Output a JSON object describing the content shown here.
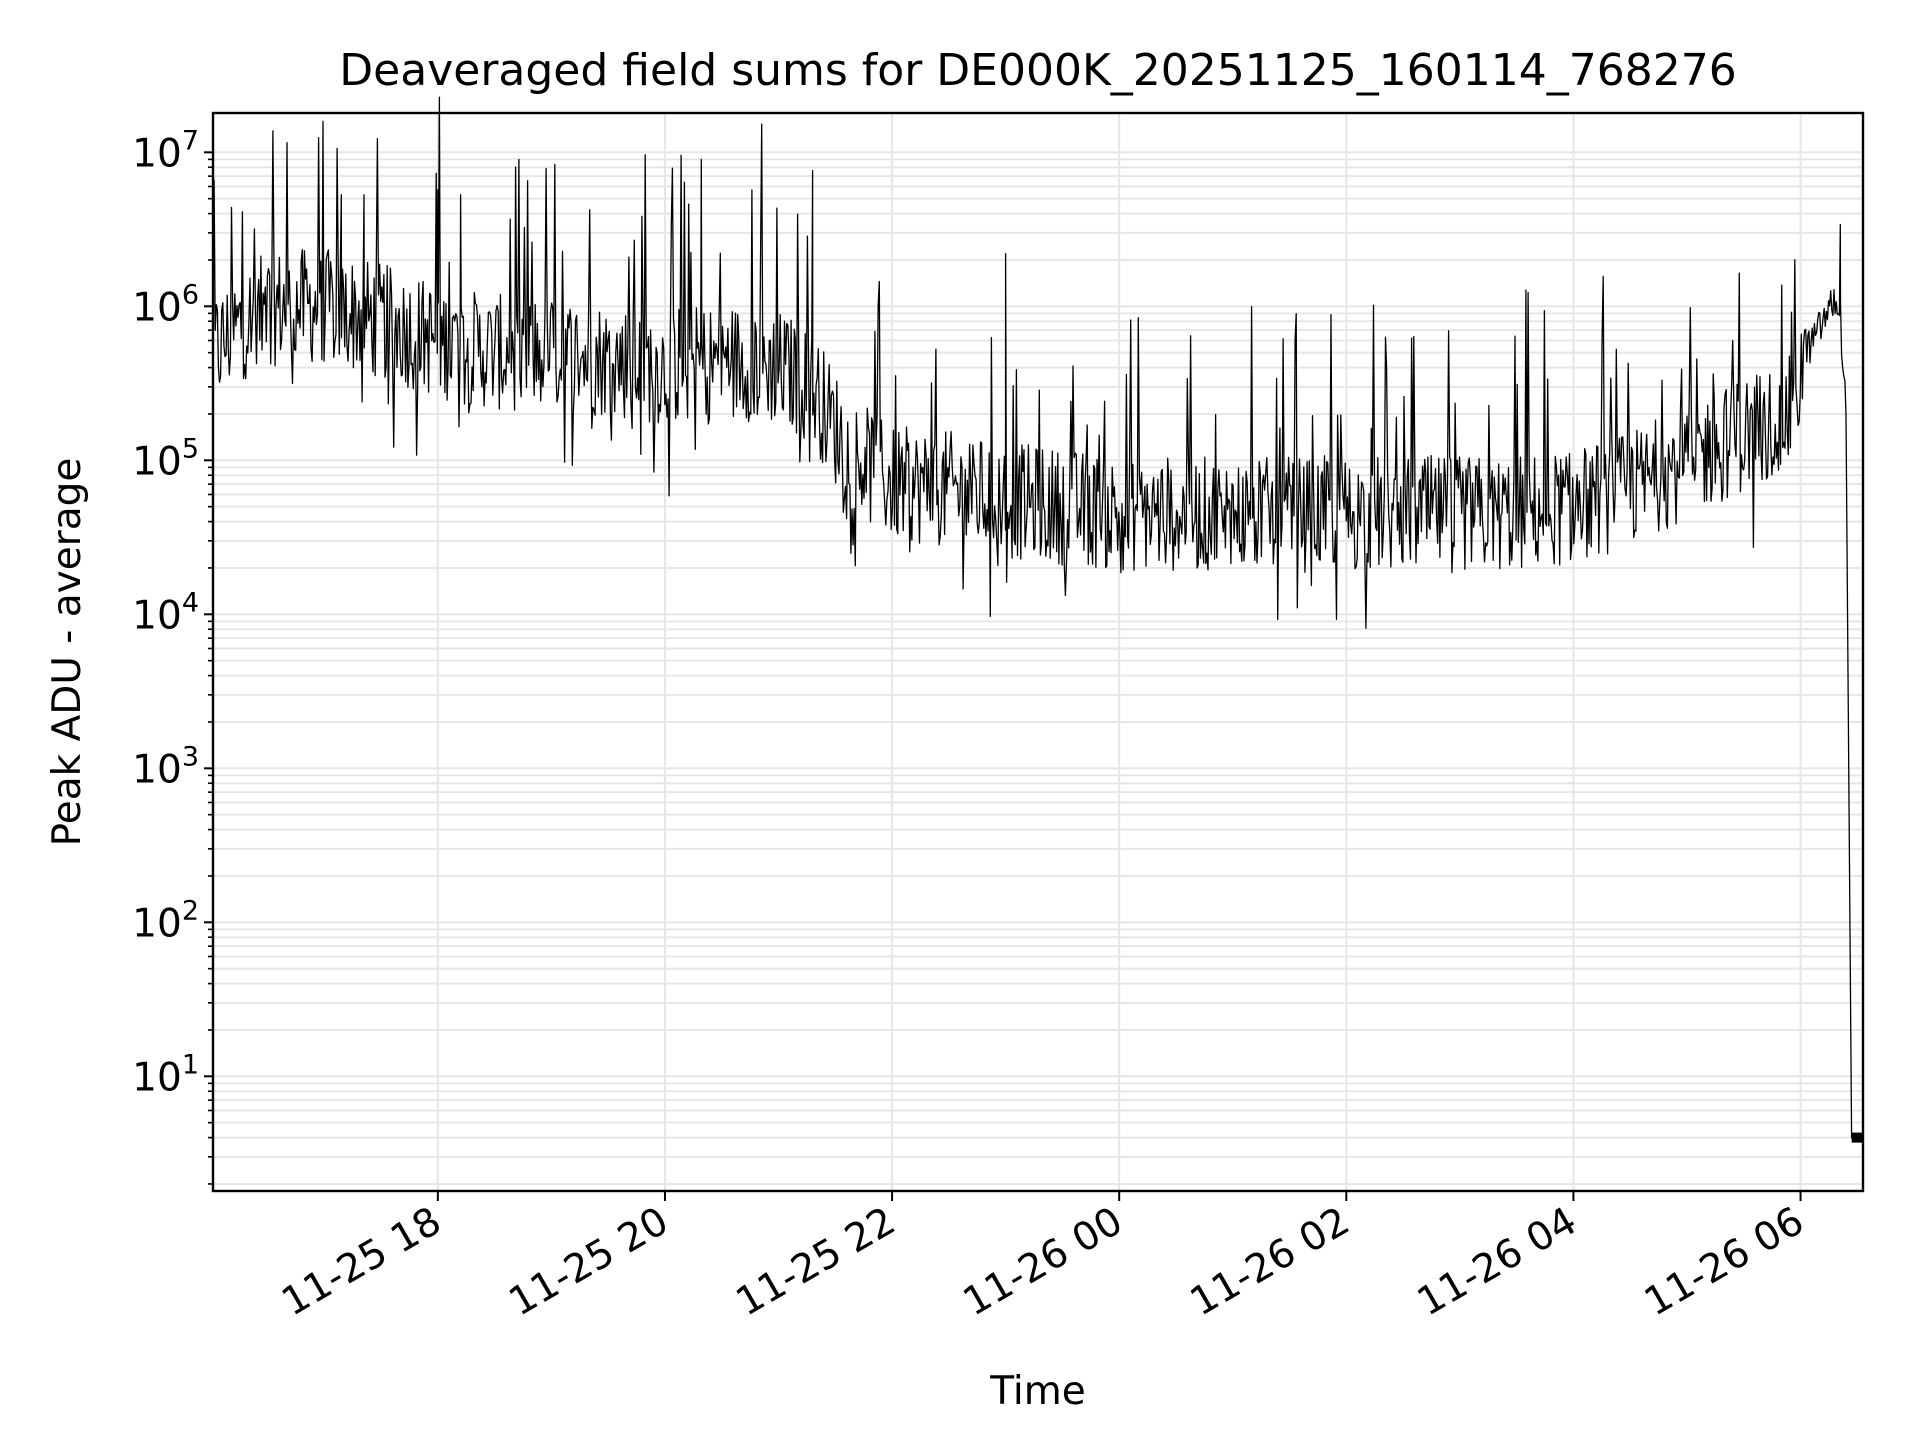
{
  "chart_data": {
    "type": "line",
    "title": "Deaveraged field sums for DE000K_20251125_160114_768276",
    "xlabel": "Time",
    "ylabel": "Peak ADU - average",
    "yscale": "log",
    "ylim": [
      1.8,
      18000000
    ],
    "xlim_hours_from_2025-11-25_00:00": [
      16.02,
      30.55
    ],
    "x_ticks": [
      {
        "label": "11-25 18",
        "hour": 18
      },
      {
        "label": "11-25 20",
        "hour": 20
      },
      {
        "label": "11-25 22",
        "hour": 22
      },
      {
        "label": "11-26 00",
        "hour": 24
      },
      {
        "label": "11-26 02",
        "hour": 26
      },
      {
        "label": "11-26 04",
        "hour": 28
      },
      {
        "label": "11-26 06",
        "hour": 30
      }
    ],
    "y_ticks": [
      {
        "base": "10",
        "exp": "1",
        "value": 10
      },
      {
        "base": "10",
        "exp": "2",
        "value": 100
      },
      {
        "base": "10",
        "exp": "3",
        "value": 1000
      },
      {
        "base": "10",
        "exp": "4",
        "value": 10000
      },
      {
        "base": "10",
        "exp": "5",
        "value": 100000
      },
      {
        "base": "10",
        "exp": "6",
        "value": 1000000
      },
      {
        "base": "10",
        "exp": "7",
        "value": 10000000
      }
    ],
    "grid": true,
    "line_color": "#000000",
    "grid_color": "#e6e6e6",
    "series": [
      {
        "name": "Peak ADU - average",
        "x_hours": [
          16.02,
          16.3,
          16.6,
          17.0,
          17.5,
          18.0,
          18.5,
          19.0,
          19.5,
          20.0,
          20.5,
          21.0,
          21.3,
          21.6,
          22.0,
          22.5,
          23.0,
          23.5,
          24.0,
          24.5,
          25.0,
          25.5,
          26.0,
          26.5,
          27.0,
          27.5,
          28.0,
          28.5,
          29.0,
          29.5,
          29.9,
          30.05,
          30.2,
          30.3,
          30.35,
          30.4,
          30.45,
          30.5,
          30.55
        ],
        "y_baseline": [
          500000,
          800000,
          1000000,
          1000000,
          800000,
          600000,
          500000,
          500000,
          450000,
          400000,
          450000,
          400000,
          300000,
          120000,
          70000,
          65000,
          55000,
          50000,
          45000,
          45000,
          44000,
          44000,
          45000,
          45000,
          45000,
          45000,
          50000,
          65000,
          100000,
          150000,
          200000,
          500000,
          800000,
          1100000,
          900000,
          200000,
          4,
          4,
          4
        ],
        "peaks": [
          {
            "hour": 17.15,
            "value": 5300000
          },
          {
            "hour": 17.35,
            "value": 5300000
          },
          {
            "hour": 18.0,
            "value": 5700000
          },
          {
            "hour": 18.2,
            "value": 5300000
          },
          {
            "hour": 20.32,
            "value": 9000000
          },
          {
            "hour": 21.3,
            "value": 7600000
          },
          {
            "hour": 23.0,
            "value": 2200000
          },
          {
            "hour": 30.35,
            "value": 3400000
          }
        ]
      }
    ]
  }
}
